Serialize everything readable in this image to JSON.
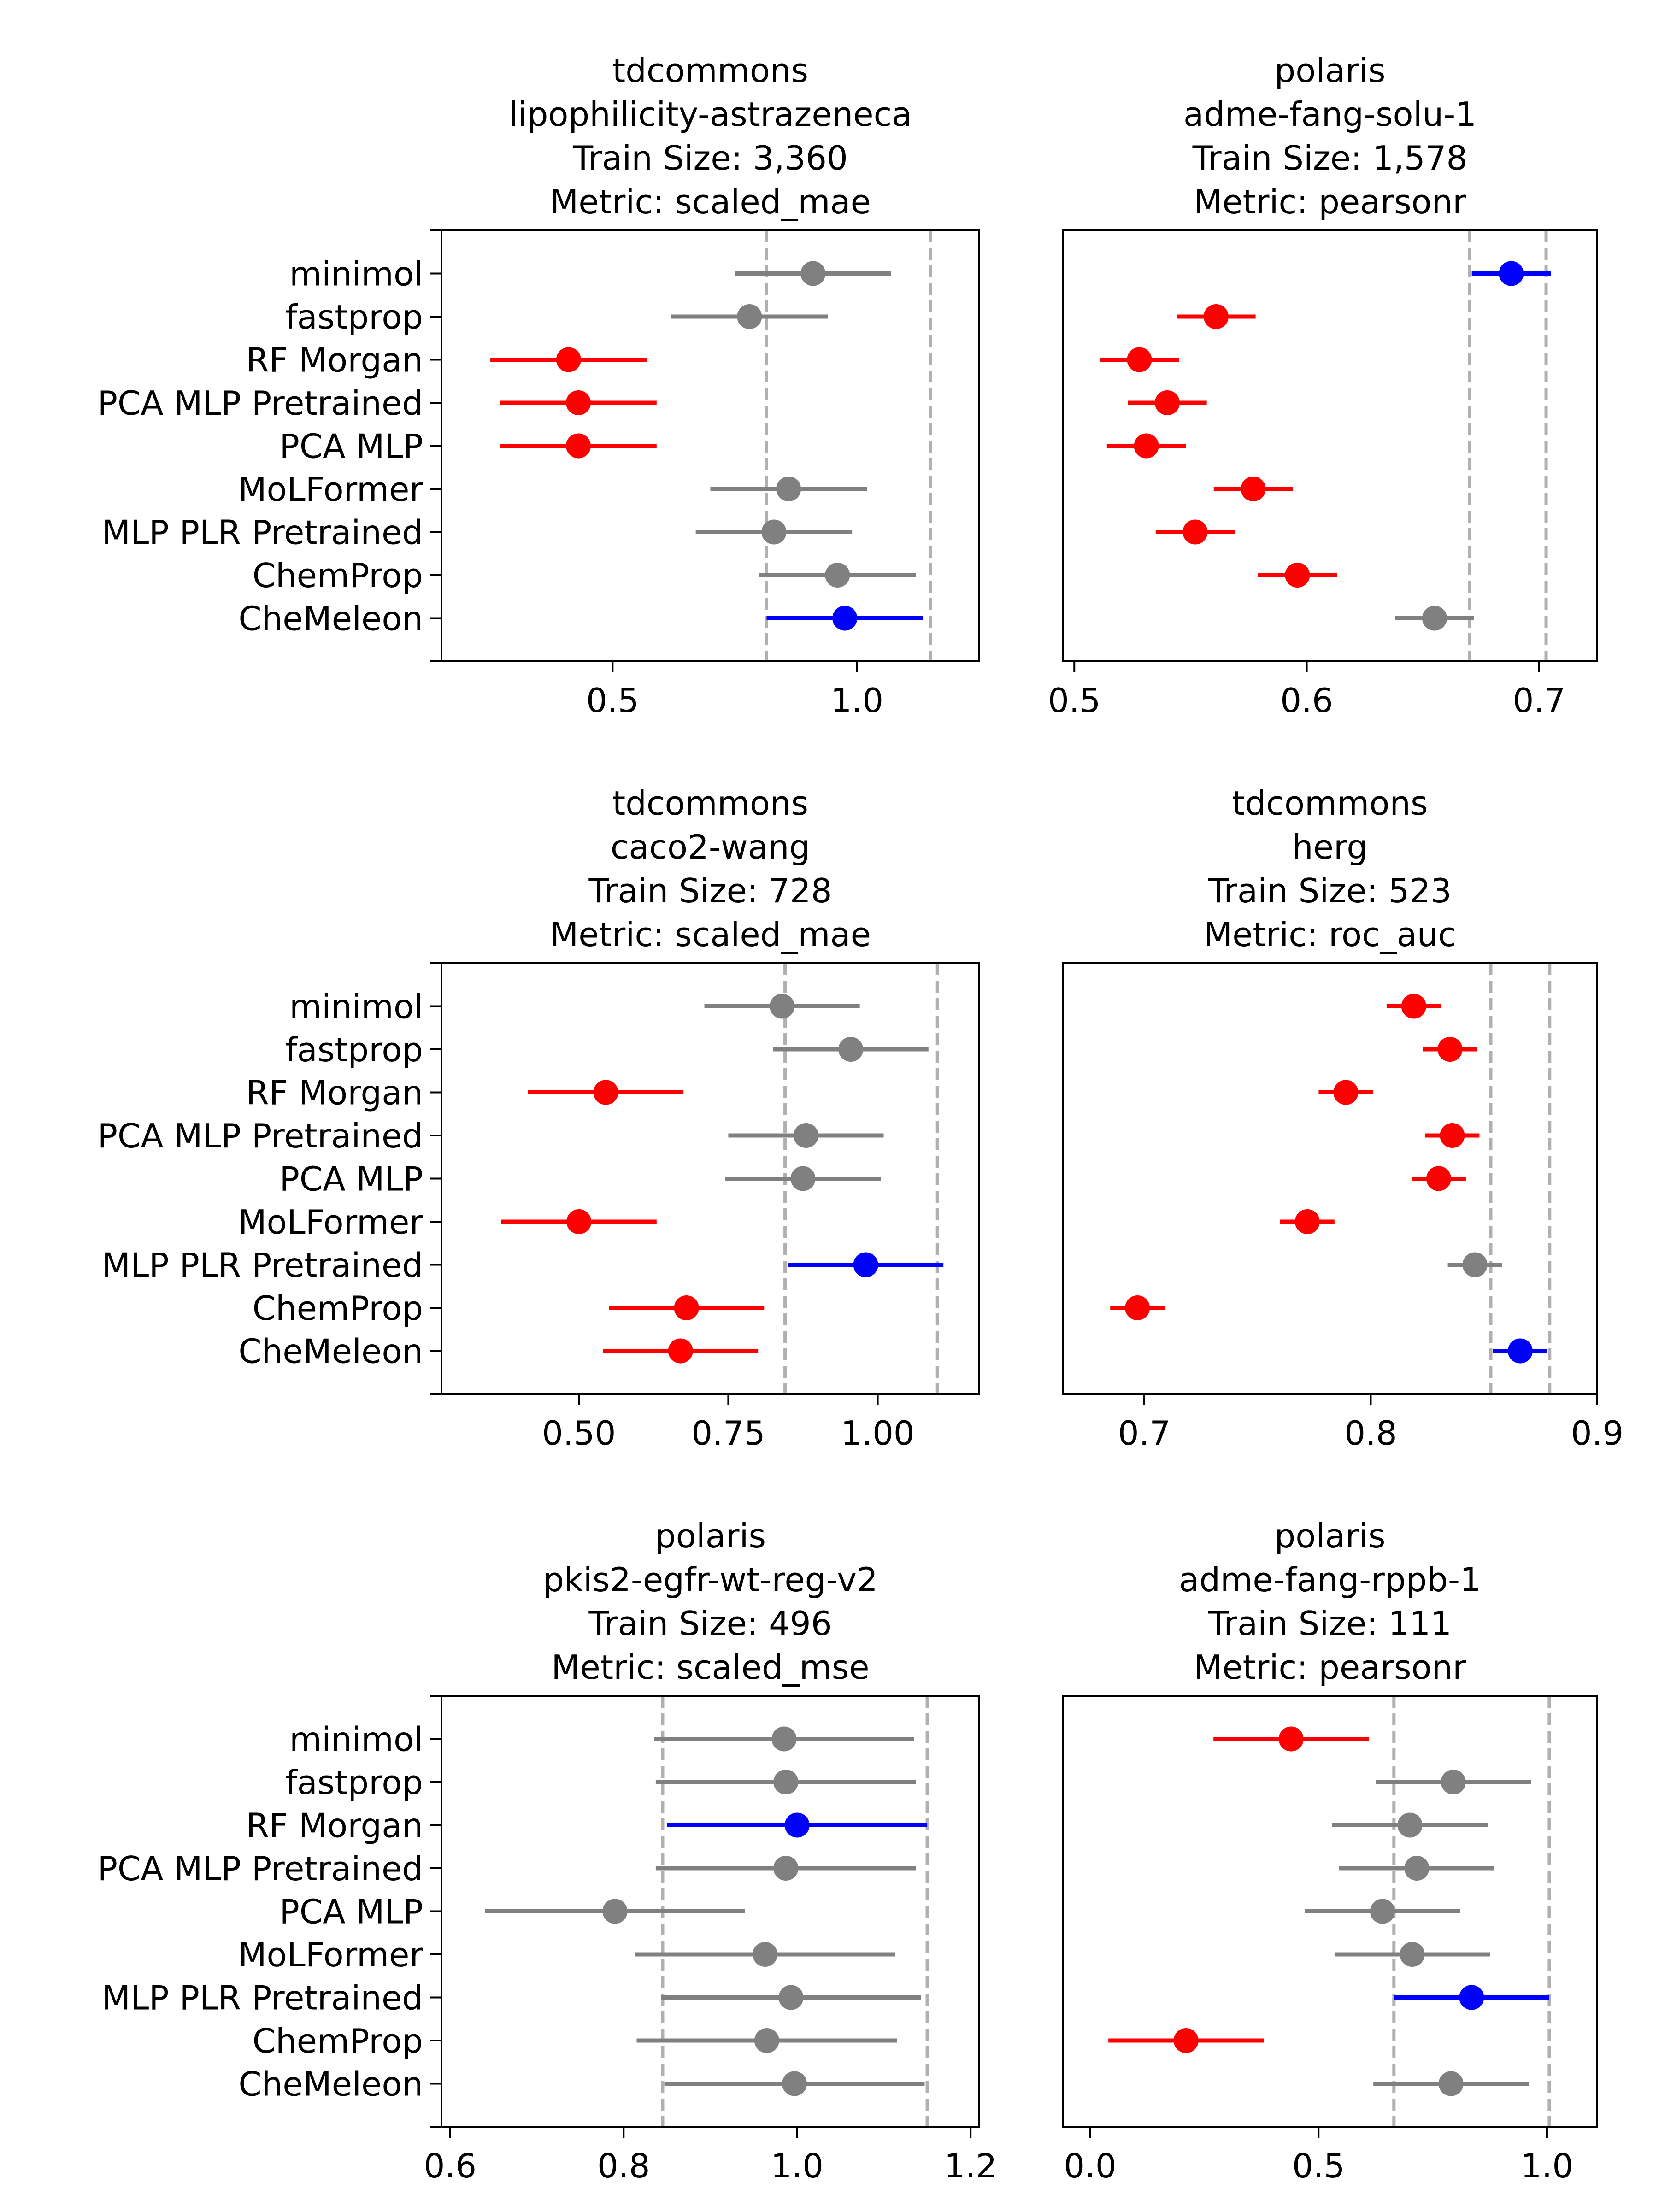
{
  "chart_data": [
    {
      "type": "dot-interval",
      "title_lines": [
        "tdcommons",
        "lipophilicity-astrazeneca",
        "Train Size: 3,360",
        "Metric: scaled_mae"
      ],
      "categories": [
        "minimol",
        "fastprop",
        "RF Morgan",
        "PCA MLP Pretrained",
        "PCA MLP",
        "MoLFormer",
        "MLP PLR Pretrained",
        "ChemProp",
        "CheMeleon"
      ],
      "xlim": [
        0.15,
        1.25
      ],
      "xticks": [
        0.5,
        1.0
      ],
      "xtick_labels": [
        "0.5",
        "1.0"
      ],
      "ref_lines": [
        0.815,
        1.15
      ],
      "values": [
        0.91,
        0.78,
        0.41,
        0.43,
        0.43,
        0.86,
        0.83,
        0.96,
        0.975
      ],
      "err_low": [
        0.75,
        0.62,
        0.25,
        0.27,
        0.27,
        0.7,
        0.67,
        0.8,
        0.815
      ],
      "err_high": [
        1.07,
        0.94,
        0.57,
        0.59,
        0.59,
        1.02,
        0.99,
        1.12,
        1.135
      ],
      "colors": [
        "gray",
        "gray",
        "red",
        "red",
        "red",
        "gray",
        "gray",
        "gray",
        "blue"
      ]
    },
    {
      "type": "dot-interval",
      "title_lines": [
        "polaris",
        "adme-fang-solu-1",
        "Train Size: 1,578",
        "Metric: pearsonr"
      ],
      "categories": [
        "minimol",
        "fastprop",
        "RF Morgan",
        "PCA MLP Pretrained",
        "PCA MLP",
        "MoLFormer",
        "MLP PLR Pretrained",
        "ChemProp",
        "CheMeleon"
      ],
      "xlim": [
        0.495,
        0.725
      ],
      "xticks": [
        0.5,
        0.6,
        0.7
      ],
      "xtick_labels": [
        "0.5",
        "0.6",
        "0.7"
      ],
      "ref_lines": [
        0.67,
        0.703
      ],
      "values": [
        0.688,
        0.561,
        0.528,
        0.54,
        0.531,
        0.577,
        0.552,
        0.596,
        0.655
      ],
      "err_low": [
        0.671,
        0.544,
        0.511,
        0.523,
        0.514,
        0.56,
        0.535,
        0.579,
        0.638
      ],
      "err_high": [
        0.705,
        0.578,
        0.545,
        0.557,
        0.548,
        0.594,
        0.569,
        0.613,
        0.672
      ],
      "colors": [
        "blue",
        "red",
        "red",
        "red",
        "red",
        "red",
        "red",
        "red",
        "gray"
      ]
    },
    {
      "type": "dot-interval",
      "title_lines": [
        "tdcommons",
        "caco2-wang",
        "Train Size: 728",
        "Metric: scaled_mae"
      ],
      "categories": [
        "minimol",
        "fastprop",
        "RF Morgan",
        "PCA MLP Pretrained",
        "PCA MLP",
        "MoLFormer",
        "MLP PLR Pretrained",
        "ChemProp",
        "CheMeleon"
      ],
      "xlim": [
        0.27,
        1.17
      ],
      "xticks": [
        0.5,
        0.75,
        1.0
      ],
      "xtick_labels": [
        "0.50",
        "0.75",
        "1.00"
      ],
      "ref_lines": [
        0.845,
        1.1
      ],
      "values": [
        0.84,
        0.955,
        0.545,
        0.88,
        0.875,
        0.5,
        0.98,
        0.68,
        0.67
      ],
      "err_low": [
        0.71,
        0.825,
        0.415,
        0.75,
        0.745,
        0.37,
        0.85,
        0.55,
        0.54
      ],
      "err_high": [
        0.97,
        1.085,
        0.675,
        1.01,
        1.005,
        0.63,
        1.11,
        0.81,
        0.8
      ],
      "colors": [
        "gray",
        "gray",
        "red",
        "gray",
        "gray",
        "red",
        "blue",
        "red",
        "red"
      ]
    },
    {
      "type": "dot-interval",
      "title_lines": [
        "tdcommons",
        "herg",
        "Train Size: 523",
        "Metric: roc_auc"
      ],
      "categories": [
        "minimol",
        "fastprop",
        "RF Morgan",
        "PCA MLP Pretrained",
        "PCA MLP",
        "MoLFormer",
        "MLP PLR Pretrained",
        "ChemProp",
        "CheMeleon"
      ],
      "xlim": [
        0.664,
        0.9
      ],
      "xticks": [
        0.7,
        0.8,
        0.9
      ],
      "xtick_labels": [
        "0.7",
        "0.8",
        "0.9"
      ],
      "ref_lines": [
        0.853,
        0.879
      ],
      "values": [
        0.819,
        0.835,
        0.789,
        0.836,
        0.83,
        0.772,
        0.846,
        0.697,
        0.866
      ],
      "err_low": [
        0.807,
        0.823,
        0.777,
        0.824,
        0.818,
        0.76,
        0.834,
        0.685,
        0.854
      ],
      "err_high": [
        0.831,
        0.847,
        0.801,
        0.848,
        0.842,
        0.784,
        0.858,
        0.709,
        0.878
      ],
      "colors": [
        "red",
        "red",
        "red",
        "red",
        "red",
        "red",
        "gray",
        "red",
        "blue"
      ]
    },
    {
      "type": "dot-interval",
      "title_lines": [
        "polaris",
        "pkis2-egfr-wt-reg-v2",
        "Train Size: 496",
        "Metric: scaled_mse"
      ],
      "categories": [
        "minimol",
        "fastprop",
        "RF Morgan",
        "PCA MLP Pretrained",
        "PCA MLP",
        "MoLFormer",
        "MLP PLR Pretrained",
        "ChemProp",
        "CheMeleon"
      ],
      "xlim": [
        0.59,
        1.21
      ],
      "xticks": [
        0.6,
        0.8,
        1.0,
        1.2
      ],
      "xtick_labels": [
        "0.6",
        "0.8",
        "1.0",
        "1.2"
      ],
      "ref_lines": [
        0.845,
        1.15
      ],
      "values": [
        0.985,
        0.987,
        1.0,
        0.987,
        0.79,
        0.963,
        0.993,
        0.965,
        0.997
      ],
      "err_low": [
        0.835,
        0.837,
        0.85,
        0.837,
        0.64,
        0.813,
        0.843,
        0.815,
        0.847
      ],
      "err_high": [
        1.135,
        1.137,
        1.15,
        1.137,
        0.94,
        1.113,
        1.143,
        1.115,
        1.147
      ],
      "colors": [
        "gray",
        "gray",
        "blue",
        "gray",
        "gray",
        "gray",
        "gray",
        "gray",
        "gray"
      ]
    },
    {
      "type": "dot-interval",
      "title_lines": [
        "polaris",
        "adme-fang-rppb-1",
        "Train Size: 111",
        "Metric: pearsonr"
      ],
      "categories": [
        "minimol",
        "fastprop",
        "RF Morgan",
        "PCA MLP Pretrained",
        "PCA MLP",
        "MoLFormer",
        "MLP PLR Pretrained",
        "ChemProp",
        "CheMeleon"
      ],
      "xlim": [
        -0.06,
        1.11
      ],
      "xticks": [
        0.0,
        0.5,
        1.0
      ],
      "xtick_labels": [
        "0.0",
        "0.5",
        "1.0"
      ],
      "ref_lines": [
        0.665,
        1.005
      ],
      "values": [
        0.44,
        0.795,
        0.7,
        0.715,
        0.64,
        0.705,
        0.835,
        0.21,
        0.79
      ],
      "err_low": [
        0.27,
        0.625,
        0.53,
        0.545,
        0.47,
        0.535,
        0.665,
        0.04,
        0.62
      ],
      "err_high": [
        0.61,
        0.965,
        0.87,
        0.885,
        0.81,
        0.875,
        1.005,
        0.38,
        0.96
      ],
      "colors": [
        "red",
        "gray",
        "gray",
        "gray",
        "gray",
        "gray",
        "blue",
        "red",
        "gray"
      ]
    }
  ],
  "palette": {
    "gray": "#808080",
    "red": "#ff0000",
    "blue": "#0000ff",
    "ref_line": "#b0b0b0"
  }
}
